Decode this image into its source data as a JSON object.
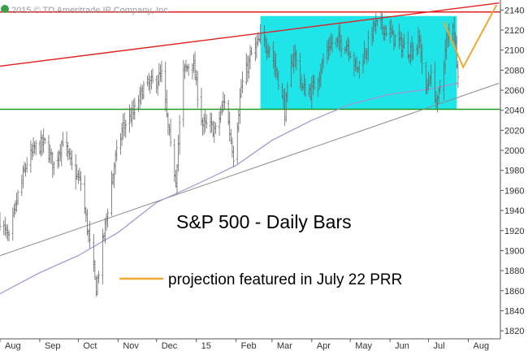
{
  "chart_data": {
    "type": "bar",
    "title": "S&P 500 - Daily Bars",
    "credit": "2015 © TD Ameritrade IP Company, Inc.",
    "xlabel": "",
    "ylabel": "",
    "ylim": [
      1812,
      2150
    ],
    "grid": false,
    "x_tick_labels": [
      "Aug",
      "Sep",
      "Oct",
      "Nov",
      "Dec",
      "15",
      "Feb",
      "Mar",
      "Apr",
      "May",
      "Jun",
      "Jul",
      "Aug"
    ],
    "y_ticks": [
      1820,
      1840,
      1860,
      1880,
      1900,
      1920,
      1940,
      1960,
      1980,
      2000,
      2020,
      2040,
      2060,
      2080,
      2100,
      2120,
      2140
    ],
    "legend": [
      {
        "label": "projection featured in July 22 PRR",
        "color": "#f0a830"
      }
    ],
    "horizontal_lines": [
      {
        "value": 2138,
        "color": "#e02020"
      },
      {
        "value": 2041,
        "color": "#1f9a1f"
      }
    ],
    "trend_lines": [
      {
        "color": "#e02020",
        "points": [
          [
            "Aug 1",
            2084
          ],
          [
            "Aug 25",
            2147
          ]
        ]
      },
      {
        "color": "#8a8a8a",
        "points": [
          [
            "Aug 1",
            1895
          ],
          [
            "Aug 25",
            2067
          ]
        ]
      }
    ],
    "highlight_box": {
      "x_from": "Feb 20",
      "x_to": "Jul 23",
      "y_from": 2041,
      "y_to": 2134,
      "color": "#1fe5e8"
    },
    "moving_average": {
      "color": "#a890d0",
      "points": [
        [
          "Aug 1",
          1857
        ],
        [
          "Sep 1",
          1878
        ],
        [
          "Oct 1",
          1895
        ],
        [
          "Nov 1",
          1918
        ],
        [
          "Dec 1",
          1948
        ],
        [
          "Jan 1",
          1966
        ],
        [
          "Feb 1",
          1985
        ],
        [
          "Mar 1",
          2010
        ],
        [
          "Apr 1",
          2030
        ],
        [
          "May 1",
          2046
        ],
        [
          "Jun 1",
          2056
        ],
        [
          "Jul 1",
          2061
        ],
        [
          "Jul 24",
          2067
        ]
      ]
    },
    "projection": {
      "color": "#f0a830",
      "points": [
        [
          "Jul 13",
          2128
        ],
        [
          "Jul 28",
          2083
        ],
        [
          "Aug 23",
          2145
        ]
      ]
    },
    "series": [
      {
        "type": "ohlc",
        "closes": [
          [
            "Aug 1",
            1931
          ],
          [
            "Aug 8",
            1910
          ],
          [
            "Aug 15",
            1955
          ],
          [
            "Aug 22",
            1988
          ],
          [
            "Aug 29",
            2003
          ],
          [
            "Sep 5",
            2007
          ],
          [
            "Sep 12",
            1985
          ],
          [
            "Sep 19",
            2011
          ],
          [
            "Sep 26",
            1983
          ],
          [
            "Oct 3",
            1967
          ],
          [
            "Oct 10",
            1906
          ],
          [
            "Oct 15",
            1862
          ],
          [
            "Oct 22",
            1925
          ],
          [
            "Oct 29",
            1985
          ],
          [
            "Nov 5",
            2024
          ],
          [
            "Nov 14",
            2039
          ],
          [
            "Nov 21",
            2063
          ],
          [
            "Nov 28",
            2067
          ],
          [
            "Dec 5",
            2075
          ],
          [
            "Dec 12",
            2002
          ],
          [
            "Dec 16",
            1972
          ],
          [
            "Dec 22",
            2078
          ],
          [
            "Dec 29",
            2090
          ],
          [
            "Jan 6",
            2025
          ],
          [
            "Jan 13",
            2023
          ],
          [
            "Jan 16",
            2019
          ],
          [
            "Jan 23",
            2051
          ],
          [
            "Jan 30",
            1995
          ],
          [
            "Feb 5",
            2063
          ],
          [
            "Feb 13",
            2096
          ],
          [
            "Feb 20",
            2110
          ],
          [
            "Feb 27",
            2104
          ],
          [
            "Mar 6",
            2071
          ],
          [
            "Mar 11",
            2040
          ],
          [
            "Mar 18",
            2099
          ],
          [
            "Mar 25",
            2061
          ],
          [
            "Apr 1",
            2059
          ],
          [
            "Apr 8",
            2082
          ],
          [
            "Apr 15",
            2106
          ],
          [
            "Apr 22",
            2108
          ],
          [
            "Apr 29",
            2106
          ],
          [
            "May 6",
            2080
          ],
          [
            "May 13",
            2099
          ],
          [
            "May 20",
            2125
          ],
          [
            "May 27",
            2123
          ],
          [
            "Jun 3",
            2114
          ],
          [
            "Jun 10",
            2105
          ],
          [
            "Jun 17",
            2100
          ],
          [
            "Jun 24",
            2108
          ],
          [
            "Jun 29",
            2057
          ],
          [
            "Jul 2",
            2077
          ],
          [
            "Jul 8",
            2046
          ],
          [
            "Jul 15",
            2107
          ],
          [
            "Jul 20",
            2128
          ],
          [
            "Jul 24",
            2080
          ]
        ]
      }
    ]
  }
}
